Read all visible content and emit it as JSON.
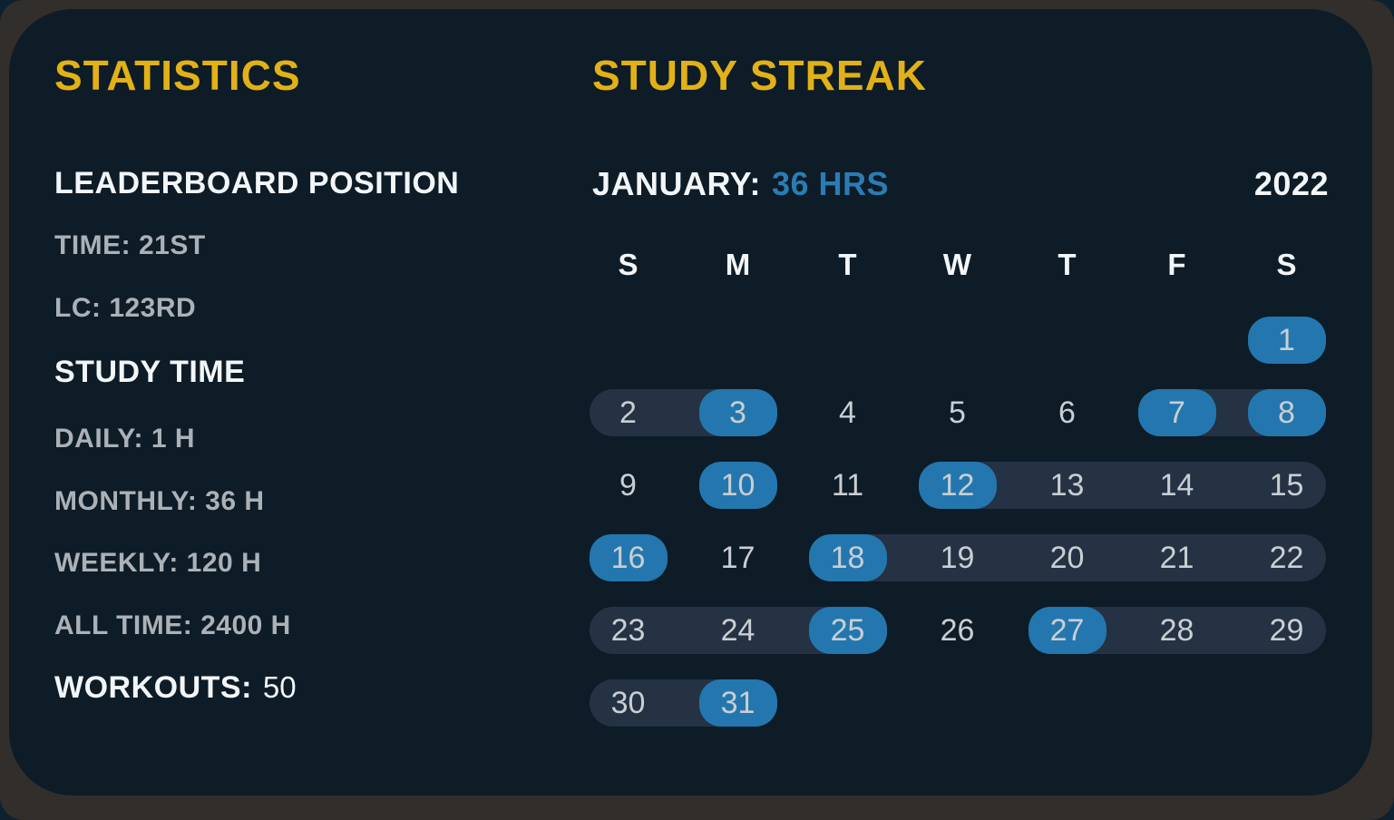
{
  "stats": {
    "title": "STATISTICS",
    "sections": [
      {
        "heading": "LEADERBOARD POSITION",
        "items": [
          "TIME: 21ST",
          "LC: 123RD"
        ]
      },
      {
        "heading": "STUDY TIME",
        "items": [
          "DAILY: 1 H",
          "MONTHLY: 36 H",
          "WEEKLY: 120 H",
          "ALL TIME: 2400 H"
        ]
      }
    ],
    "workouts_label": "WORKOUTS:",
    "workouts_value": "50"
  },
  "streak": {
    "title": "STUDY STREAK",
    "month_label": "JANUARY:",
    "month_hours": "36 HRS",
    "year": "2022",
    "weekday_headers": [
      "S",
      "M",
      "T",
      "W",
      "T",
      "F",
      "S"
    ],
    "first_day_column": 6,
    "days_in_month": 31,
    "highlighted_days": [
      1,
      3,
      7,
      8,
      10,
      12,
      16,
      18,
      25,
      27,
      31
    ],
    "streak_spans": [
      [
        2,
        3
      ],
      [
        7,
        8
      ],
      [
        12,
        15
      ],
      [
        18,
        22
      ],
      [
        23,
        25
      ],
      [
        27,
        29
      ],
      [
        30,
        31
      ]
    ]
  },
  "colors": {
    "accent_yellow": "#e2b117",
    "accent_blue": "#2377ae",
    "streak_pill_dark": "#243244",
    "card_background": "#0d1c27",
    "frame_background": "#322e2b",
    "text_white": "#f3f6f8",
    "text_gray": "#abb1b7",
    "day_number_gray": "#c9ced3"
  }
}
